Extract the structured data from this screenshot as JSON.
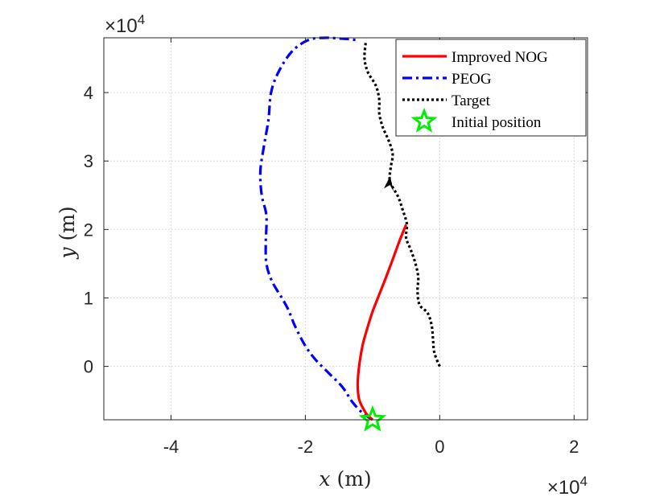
{
  "chart_data": {
    "type": "line",
    "title": "",
    "xlabel": {
      "var": "x",
      "unit": "(m)"
    },
    "ylabel": {
      "var": "y",
      "unit": "(m)"
    },
    "x_multiplier": {
      "base": "×10",
      "exp": "4"
    },
    "y_multiplier": {
      "base": "×10",
      "exp": "4"
    },
    "xlim": [
      -50000,
      22000
    ],
    "ylim": [
      -7800,
      48000
    ],
    "xticks": [
      -40000,
      -20000,
      0,
      20000
    ],
    "xtick_labels": [
      "-4",
      "-2",
      "0",
      "2"
    ],
    "yticks": [
      0,
      10000,
      20000,
      30000,
      40000
    ],
    "ytick_labels": [
      "0",
      "1",
      "2",
      "3",
      "4"
    ],
    "grid": true,
    "legend_location": "top-right",
    "series": [
      {
        "name": "Improved NOG",
        "color": "#ff0000",
        "style": "solid",
        "x": [
          -10000,
          -11000,
          -12000,
          -12200,
          -12000,
          -11500,
          -10800,
          -10000,
          -9000,
          -8000,
          -7000,
          -6000,
          -5000
        ],
        "y": [
          -7800,
          -6800,
          -4800,
          -2500,
          0,
          3000,
          5500,
          8000,
          10500,
          13000,
          15600,
          18300,
          20700
        ]
      },
      {
        "name": "PEOG",
        "color": "#0000ff",
        "style": "dashdot",
        "x": [
          -10000,
          -11500,
          -13000,
          -14500,
          -16500,
          -18500,
          -20000,
          -21500,
          -22500,
          -23500,
          -25000,
          -25800,
          -25900,
          -25800,
          -26500,
          -26700,
          -26200,
          -25500,
          -25100,
          -24000,
          -22000,
          -19500,
          -17000,
          -15000,
          -13500,
          -12000
        ],
        "y": [
          -7800,
          -6800,
          -5200,
          -3000,
          -1000,
          1000,
          3000,
          5800,
          8200,
          10000,
          12500,
          15000,
          18000,
          22000,
          25000,
          28500,
          32000,
          36000,
          40000,
          43000,
          46000,
          47700,
          48000,
          47900,
          47800,
          47600
        ]
      },
      {
        "name": "Target",
        "color": "#000000",
        "style": "dotted",
        "x": [
          0,
          -800,
          -1000,
          -1200,
          -1800,
          -3000,
          -3300,
          -3200,
          -3600,
          -4300,
          -5000,
          -4900,
          -5500,
          -6200,
          -7400,
          -7300,
          -7000,
          -7600,
          -8500,
          -9000,
          -9000,
          -9500,
          -10700,
          -11200,
          -11000
        ],
        "y": [
          0,
          2000,
          4000,
          6000,
          7800,
          9000,
          11000,
          13000,
          15000,
          17000,
          18800,
          20800,
          22800,
          24800,
          27000,
          29000,
          31000,
          33000,
          35000,
          37000,
          39000,
          41000,
          43000,
          45000,
          47500
        ]
      }
    ],
    "marker": {
      "name": "Initial position",
      "x": -10000,
      "y": -7800,
      "color": "#00ee00"
    },
    "arrow": {
      "x": -7400,
      "y": 27000
    }
  }
}
